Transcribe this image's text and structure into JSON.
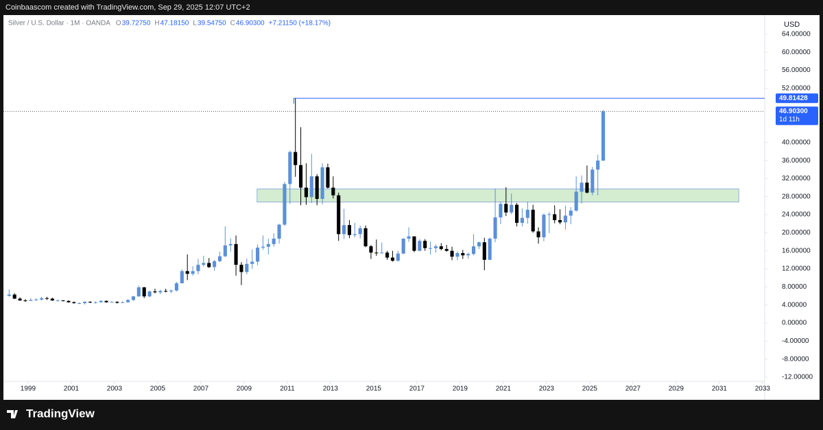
{
  "header": {
    "caption": "Coinbaascom created with TradingView.com, Sep 29, 2025 12:07 UTC+2"
  },
  "footer": {
    "brand": "TradingView"
  },
  "chart_data": {
    "type": "candlestick",
    "symbol": "Silver / U.S. Dollar · 1M · OANDA",
    "legend": [
      {
        "key": "O",
        "value": "39.72750"
      },
      {
        "key": "H",
        "value": "47.18150"
      },
      {
        "key": "L",
        "value": "39.54750"
      },
      {
        "key": "C",
        "value": "46.90300"
      }
    ],
    "change": "+7.21150 (+18.17%)",
    "currency": "USD",
    "up_color": "#5b8fd9",
    "down_color": "#000000",
    "xlim": [
      1997.86,
      2033.1
    ],
    "xticks": [
      1999,
      2001,
      2003,
      2005,
      2007,
      2009,
      2011,
      2013,
      2015,
      2017,
      2019,
      2021,
      2023,
      2025,
      2027,
      2029,
      2031,
      2033
    ],
    "ylim": [
      -12.92,
      68.24
    ],
    "yticks": [
      {
        "value": -12,
        "label": "-12.00000"
      },
      {
        "value": -8,
        "label": "-8.00000"
      },
      {
        "value": -4,
        "label": "-4.00000"
      },
      {
        "value": 0,
        "label": "0.00000"
      },
      {
        "value": 4,
        "label": "4.00000"
      },
      {
        "value": 8,
        "label": "8.00000"
      },
      {
        "value": 12,
        "label": "12.00000"
      },
      {
        "value": 16,
        "label": "16.00000"
      },
      {
        "value": 20,
        "label": "20.00000"
      },
      {
        "value": 24,
        "label": "24.00000"
      },
      {
        "value": 28,
        "label": "28.00000"
      },
      {
        "value": 32,
        "label": "32.00000"
      },
      {
        "value": 36,
        "label": "36.00000"
      },
      {
        "value": 40,
        "label": "40.00000"
      },
      {
        "value": 52,
        "label": "52.00000"
      },
      {
        "value": 56,
        "label": "56.00000"
      },
      {
        "value": 60,
        "label": "60.00000"
      },
      {
        "value": 64,
        "label": "64.00000"
      }
    ],
    "x": [
      1998.125,
      1998.375,
      1998.625,
      1998.875,
      1999.125,
      1999.375,
      1999.625,
      1999.875,
      2000.125,
      2000.375,
      2000.625,
      2000.875,
      2001.125,
      2001.375,
      2001.625,
      2001.875,
      2002.125,
      2002.375,
      2002.625,
      2002.875,
      2003.125,
      2003.375,
      2003.625,
      2003.875,
      2004.125,
      2004.375,
      2004.625,
      2004.875,
      2005.125,
      2005.375,
      2005.625,
      2005.875,
      2006.125,
      2006.375,
      2006.625,
      2006.875,
      2007.125,
      2007.375,
      2007.625,
      2007.875,
      2008.125,
      2008.375,
      2008.625,
      2008.875,
      2009.125,
      2009.375,
      2009.625,
      2009.875,
      2010.125,
      2010.375,
      2010.625,
      2010.875,
      2011.125,
      2011.375,
      2011.625,
      2011.875,
      2012.125,
      2012.375,
      2012.625,
      2012.875,
      2013.125,
      2013.375,
      2013.625,
      2013.875,
      2014.125,
      2014.375,
      2014.625,
      2014.875,
      2015.125,
      2015.375,
      2015.625,
      2015.875,
      2016.125,
      2016.375,
      2016.625,
      2016.875,
      2017.125,
      2017.375,
      2017.625,
      2017.875,
      2018.125,
      2018.375,
      2018.625,
      2018.875,
      2019.125,
      2019.375,
      2019.625,
      2019.875,
      2020.125,
      2020.375,
      2020.625,
      2020.875,
      2021.125,
      2021.375,
      2021.625,
      2021.875,
      2022.125,
      2022.375,
      2022.625,
      2022.875,
      2023.125,
      2023.375,
      2023.625,
      2023.875,
      2024.125,
      2024.375,
      2024.625,
      2024.875,
      2025.125,
      2025.375,
      2025.625
    ],
    "open": [
      6.0,
      6.3,
      5.4,
      5.0,
      4.9,
      5.1,
      5.2,
      5.5,
      5.4,
      5.0,
      5.0,
      4.9,
      4.6,
      4.4,
      4.4,
      4.7,
      4.6,
      4.6,
      4.9,
      4.6,
      4.7,
      4.5,
      4.6,
      5.1,
      5.9,
      7.9,
      5.9,
      7.0,
      6.8,
      7.1,
      7.0,
      7.2,
      8.8,
      11.5,
      10.9,
      11.5,
      12.9,
      13.3,
      12.4,
      13.7,
      14.8,
      17.2,
      17.5,
      12.9,
      11.3,
      13.1,
      13.6,
      16.7,
      16.9,
      17.5,
      18.7,
      21.8,
      30.8,
      37.9,
      35.0,
      30.0,
      27.9,
      32.5,
      27.5,
      34.5,
      30.0,
      28.3,
      19.7,
      21.7,
      19.5,
      19.7,
      21.0,
      17.0,
      15.6,
      15.5,
      15.6,
      14.5,
      13.8,
      15.4,
      18.7,
      19.2,
      16.0,
      18.2,
      16.6,
      16.6,
      17.0,
      16.4,
      16.0,
      14.7,
      15.5,
      15.0,
      15.3,
      17.0,
      17.9,
      14.0,
      18.7,
      23.4,
      26.4,
      24.5,
      26.2,
      22.2,
      23.3,
      25.1,
      20.3,
      19.0,
      24.0,
      24.1,
      22.8,
      22.3,
      23.8,
      24.9,
      29.1,
      31.1,
      28.9,
      34.0,
      36.0
    ],
    "high": [
      7.4,
      6.6,
      5.7,
      5.3,
      5.5,
      5.5,
      5.8,
      5.8,
      5.6,
      5.2,
      5.1,
      5.0,
      4.8,
      4.6,
      4.8,
      4.8,
      4.8,
      5.1,
      5.0,
      4.8,
      4.8,
      4.8,
      5.3,
      6.0,
      8.3,
      8.0,
      7.2,
      7.6,
      7.4,
      7.6,
      7.4,
      9.1,
      11.9,
      15.2,
      12.6,
      14.2,
      14.9,
      14.4,
      14.0,
      15.8,
      21.4,
      18.8,
      19.4,
      13.5,
      14.3,
      16.3,
      17.4,
      19.4,
      18.7,
      19.9,
      22.0,
      31.3,
      38.2,
      49.8,
      43.4,
      35.4,
      37.5,
      33.0,
      35.4,
      35.3,
      32.5,
      28.9,
      25.3,
      22.8,
      22.2,
      21.6,
      21.6,
      17.3,
      18.5,
      17.8,
      16.0,
      16.0,
      16.0,
      18.8,
      21.2,
      19.2,
      18.6,
      18.6,
      18.0,
      17.4,
      17.7,
      17.3,
      16.9,
      15.9,
      16.2,
      15.6,
      19.7,
      18.0,
      18.9,
      18.9,
      29.8,
      26.9,
      30.1,
      28.7,
      26.6,
      25.4,
      26.9,
      26.2,
      21.2,
      24.3,
      24.6,
      26.1,
      25.2,
      26.0,
      25.7,
      32.5,
      32.7,
      34.9,
      34.6,
      37.3,
      47.2
    ],
    "low": [
      5.9,
      5.3,
      4.9,
      4.7,
      4.9,
      4.9,
      5.0,
      5.1,
      4.9,
      4.8,
      4.8,
      4.5,
      4.3,
      4.2,
      4.1,
      4.4,
      4.3,
      4.5,
      4.5,
      4.5,
      4.3,
      4.4,
      4.5,
      4.9,
      5.8,
      5.5,
      5.7,
      6.6,
      6.4,
      6.8,
      6.6,
      7.0,
      8.8,
      9.5,
      10.5,
      10.8,
      12.5,
      12.2,
      11.6,
      13.5,
      14.6,
      15.8,
      10.5,
      8.4,
      10.8,
      12.0,
      12.8,
      16.2,
      15.2,
      16.9,
      17.6,
      21.5,
      26.4,
      32.4,
      26.1,
      26.2,
      26.6,
      26.1,
      26.3,
      29.8,
      27.6,
      18.2,
      18.6,
      18.8,
      19.0,
      18.7,
      16.8,
      14.2,
      14.9,
      15.4,
      14.0,
      13.6,
      13.6,
      15.2,
      18.0,
      15.7,
      15.9,
      16.0,
      15.2,
      15.6,
      16.1,
      15.8,
      13.9,
      13.9,
      14.2,
      14.3,
      15.0,
      16.4,
      11.7,
      14.0,
      17.9,
      21.9,
      23.7,
      24.1,
      21.4,
      21.4,
      22.0,
      20.0,
      17.6,
      18.1,
      19.9,
      22.1,
      21.9,
      20.7,
      21.9,
      24.7,
      26.5,
      28.7,
      28.3,
      28.3,
      35.9
    ],
    "close": [
      6.3,
      5.4,
      5.0,
      4.9,
      5.1,
      5.2,
      5.5,
      5.4,
      5.0,
      5.0,
      4.9,
      4.6,
      4.4,
      4.4,
      4.7,
      4.6,
      4.6,
      4.9,
      4.6,
      4.7,
      4.5,
      4.6,
      5.1,
      5.9,
      7.9,
      5.9,
      7.0,
      6.8,
      7.1,
      7.0,
      7.2,
      8.8,
      11.5,
      10.9,
      11.5,
      12.9,
      13.3,
      12.4,
      13.7,
      14.8,
      17.2,
      17.5,
      12.9,
      11.3,
      13.1,
      13.6,
      16.7,
      16.9,
      17.5,
      18.7,
      21.8,
      30.8,
      37.9,
      35.0,
      30.0,
      27.9,
      32.5,
      27.5,
      34.5,
      30.0,
      28.3,
      19.7,
      21.7,
      19.5,
      19.7,
      21.0,
      17.0,
      15.6,
      15.5,
      15.6,
      14.5,
      13.8,
      15.4,
      18.7,
      19.2,
      16.0,
      18.2,
      16.6,
      16.6,
      17.0,
      16.4,
      16.0,
      14.7,
      15.5,
      15.0,
      15.3,
      17.0,
      17.9,
      14.0,
      18.7,
      23.4,
      26.4,
      24.5,
      26.2,
      22.2,
      23.3,
      25.1,
      20.3,
      19.0,
      24.0,
      24.1,
      22.8,
      22.3,
      23.8,
      24.9,
      29.1,
      31.1,
      28.9,
      34.0,
      36.0,
      46.9
    ],
    "zone": {
      "x": [
        2009.6,
        2031.9
      ],
      "y": [
        26.8,
        29.7
      ],
      "color": "#d4ecd0"
    },
    "hline": {
      "x": 2011.3,
      "value": 49.81428,
      "label": "49.81428",
      "color": "#2962ff"
    },
    "last_price": {
      "value": 46.903,
      "label": "46.90300",
      "countdown": "1d 11h",
      "color": "#2962ff"
    }
  }
}
